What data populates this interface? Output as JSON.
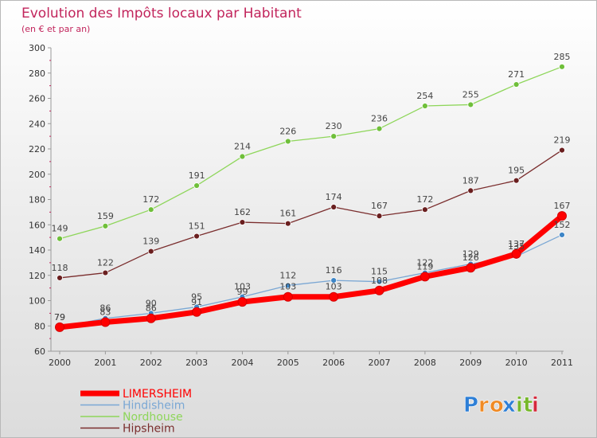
{
  "colors": {
    "title": "#c2255c",
    "axis": "#9a9a9a",
    "tick_text": "#333333",
    "value_text": "#444444",
    "grid": "#e6e6e6"
  },
  "logo": {
    "text": "Proxiti",
    "letters": [
      "P",
      "r",
      "o",
      "x",
      "i",
      "t",
      "i"
    ],
    "letter_colors": [
      "#2e7fd6",
      "#f08a24",
      "#f08a24",
      "#2e7fd6",
      "#76b82a",
      "#76b82a",
      "#d4283c"
    ]
  },
  "chart_data": {
    "type": "line",
    "title": "Evolution des Impôts locaux par Habitant",
    "subtitle": "(en € et par an)",
    "xlabel": "",
    "ylabel": "",
    "ylim": [
      60,
      300
    ],
    "yticks": [
      60,
      80,
      100,
      120,
      140,
      160,
      180,
      200,
      220,
      240,
      260,
      280,
      300
    ],
    "x": [
      2000,
      2001,
      2002,
      2003,
      2004,
      2005,
      2006,
      2007,
      2008,
      2009,
      2010,
      2011
    ],
    "legend_position": "bottom-left",
    "grid": false,
    "series": [
      {
        "name": "Nordhouse",
        "color": "#8ed65a",
        "marker_color": "#6fbf3a",
        "values": [
          149,
          159,
          172,
          191,
          214,
          226,
          230,
          236,
          254,
          255,
          271,
          285
        ],
        "labels": [
          "149",
          "159",
          "172",
          "191",
          "214",
          "226",
          "230",
          "236",
          "254",
          "255",
          "271",
          "285"
        ]
      },
      {
        "name": "Hipsheim",
        "color": "#7a2d2d",
        "marker_color": "#6a1f1f",
        "values": [
          118,
          122,
          139,
          151,
          162,
          161,
          174,
          167,
          172,
          187,
          195,
          219
        ],
        "labels": [
          "118",
          "122",
          "139",
          "151",
          "162",
          "161",
          "174",
          "167",
          "172",
          "187",
          "195",
          "219"
        ]
      },
      {
        "name": "Hindisheim",
        "color": "#7aa7d4",
        "marker_color": "#3d85c6",
        "values": [
          79,
          86,
          90,
          95,
          103,
          112,
          116,
          115,
          122,
          129,
          135,
          152
        ],
        "labels": [
          "79",
          "86",
          "90",
          "95",
          "103",
          "112",
          "116",
          "115",
          "122",
          "129",
          "135",
          "152"
        ]
      },
      {
        "name": "LIMERSHEIM",
        "color": "#ff0000",
        "marker_color": "#ff0000",
        "values": [
          79,
          83,
          86,
          91,
          99,
          103,
          103,
          108,
          119,
          126,
          137,
          167
        ],
        "labels": [
          "79",
          "83",
          "86",
          "91",
          "99",
          "103",
          "103",
          "108",
          "119",
          "126",
          "137",
          "167"
        ]
      }
    ],
    "legend_order": [
      "LIMERSHEIM",
      "Hindisheim",
      "Nordhouse",
      "Hipsheim"
    ]
  }
}
